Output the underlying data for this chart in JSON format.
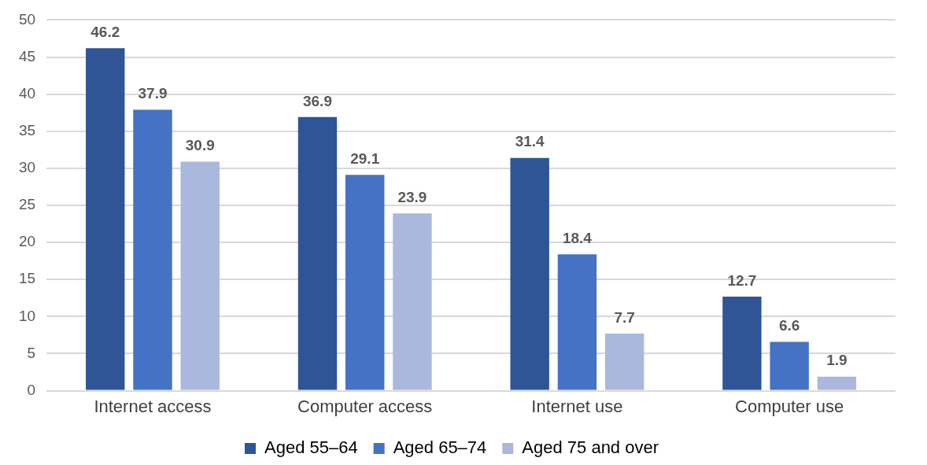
{
  "chart_data": {
    "type": "bar",
    "categories": [
      "Internet access",
      "Computer access",
      "Internet use",
      "Computer use"
    ],
    "series": [
      {
        "name": "Aged 55–64",
        "color": "#2f5597",
        "values": [
          46.2,
          36.9,
          31.4,
          12.7
        ]
      },
      {
        "name": "Aged 65–74",
        "color": "#4472c4",
        "values": [
          37.9,
          29.1,
          18.4,
          6.6
        ]
      },
      {
        "name": "Aged 75 and over",
        "color": "#a9b8dc",
        "values": [
          30.9,
          23.9,
          7.7,
          1.9
        ]
      }
    ],
    "ylim": [
      0,
      50
    ],
    "yticks": [
      0,
      5,
      10,
      15,
      20,
      25,
      30,
      35,
      40,
      45,
      50
    ],
    "grid": "y",
    "legend": "bottom",
    "data_labels": true
  }
}
